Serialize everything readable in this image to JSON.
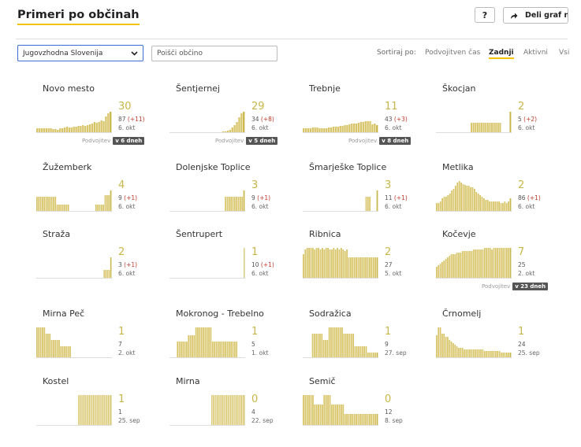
{
  "header": {
    "title": "Primeri po občinah",
    "help_label": "?",
    "share_label": "Deli graf na"
  },
  "filters": {
    "region_selected": "Jugovzhodna Slovenija",
    "search_placeholder": "Poišči občino",
    "sort_label": "Sortiraj po:",
    "sort_options": [
      {
        "label": "Podvojitven čas",
        "active": false
      },
      {
        "label": "Zadnji",
        "active": true
      },
      {
        "label": "Aktivni",
        "active": false
      },
      {
        "label": "Vsi",
        "active": false
      }
    ]
  },
  "colors": {
    "bar": "#d8c569",
    "bar_latest": "#c9b64a",
    "accent_underline": "#f2c200",
    "delta": "#c0392b",
    "select_border": "#3b6fd1"
  },
  "municipalities": [
    {
      "name": "Novo mesto",
      "latest": "30",
      "total": "87",
      "delta": "(+11)",
      "date": "6. okt",
      "doubling_label": "Podvojitev",
      "doubling_value": "v 6 dneh",
      "bars": [
        5,
        5,
        5,
        5,
        5,
        5,
        5,
        4,
        4,
        3,
        5,
        5,
        6,
        7,
        6,
        6,
        7,
        7,
        8,
        8,
        9,
        8,
        9,
        10,
        11,
        13,
        12,
        13,
        15,
        14,
        20,
        24,
        26
      ]
    },
    {
      "name": "Šentjernej",
      "latest": "29",
      "total": "34",
      "delta": "(+8)",
      "date": "6. okt",
      "doubling_label": "Podvojitev",
      "doubling_value": "v 5 dneh",
      "bars": [
        0,
        0,
        0,
        0,
        0,
        0,
        0,
        0,
        0,
        0,
        0,
        0,
        0,
        0,
        0,
        0,
        0,
        0,
        0,
        0,
        0,
        0,
        0,
        1,
        1,
        2,
        3,
        6,
        9,
        13,
        19,
        24,
        26
      ]
    },
    {
      "name": "Trebnje",
      "latest": "11",
      "total": "43",
      "delta": "(+3)",
      "date": "6. okt",
      "doubling_label": "Podvojitev",
      "doubling_value": "v 8 dneh",
      "bars": [
        5,
        5,
        5,
        5,
        6,
        6,
        6,
        5,
        5,
        5,
        5,
        6,
        6,
        7,
        7,
        7,
        8,
        8,
        9,
        9,
        10,
        11,
        11,
        11,
        12,
        13,
        13,
        14,
        14,
        14,
        10,
        11,
        9
      ]
    },
    {
      "name": "Škocjan",
      "latest": "2",
      "total": "5",
      "delta": "(+2)",
      "date": "6. okt",
      "bars": [
        0,
        0,
        0,
        0,
        0,
        0,
        0,
        0,
        0,
        0,
        0,
        0,
        0,
        0,
        0,
        0,
        0,
        12,
        12,
        12,
        12,
        12,
        12,
        12,
        12,
        12,
        12,
        12,
        12,
        12,
        12,
        12,
        0,
        0,
        0,
        0,
        26
      ]
    },
    {
      "name": "Žužemberk",
      "latest": "4",
      "total": "9",
      "delta": "(+1)",
      "date": "6. okt",
      "bars": [
        18,
        18,
        18,
        18,
        18,
        18,
        18,
        18,
        18,
        18,
        18,
        8,
        8,
        8,
        8,
        8,
        8,
        8,
        0,
        0,
        0,
        0,
        0,
        0,
        0,
        0,
        0,
        0,
        0,
        0,
        0,
        0,
        8,
        8,
        8,
        8,
        8,
        20,
        20,
        20,
        26
      ]
    },
    {
      "name": "Dolenjske Toplice",
      "latest": "3",
      "total": "9",
      "delta": "(+1)",
      "date": "6. okt",
      "bars": [
        0,
        0,
        0,
        0,
        0,
        0,
        0,
        0,
        0,
        0,
        0,
        0,
        0,
        0,
        0,
        0,
        0,
        0,
        0,
        0,
        0,
        0,
        0,
        0,
        0,
        0,
        0,
        0,
        0,
        0,
        18,
        18,
        18,
        18,
        18,
        18,
        18,
        18,
        18,
        18,
        26
      ]
    },
    {
      "name": "Šmarješke Toplice",
      "latest": "3",
      "total": "11",
      "delta": "(+1)",
      "date": "6. okt",
      "bars": [
        0,
        0,
        0,
        0,
        0,
        0,
        0,
        0,
        0,
        0,
        0,
        0,
        0,
        0,
        0,
        0,
        0,
        0,
        0,
        0,
        0,
        0,
        0,
        0,
        0,
        0,
        0,
        0,
        0,
        0,
        0,
        0,
        0,
        0,
        18,
        18,
        18,
        0,
        0,
        0,
        26
      ]
    },
    {
      "name": "Metlika",
      "latest": "2",
      "total": "86",
      "delta": "(+1)",
      "date": "6. okt",
      "bars": [
        10,
        10,
        12,
        16,
        18,
        18,
        20,
        22,
        26,
        28,
        32,
        36,
        38,
        36,
        34,
        33,
        32,
        32,
        30,
        30,
        28,
        24,
        22,
        20,
        18,
        16,
        14,
        14,
        12,
        12,
        12,
        12,
        12,
        12,
        10,
        10,
        12,
        10,
        12,
        16
      ]
    },
    {
      "name": "Straža",
      "latest": "2",
      "total": "3",
      "delta": "(+1)",
      "date": "6. okt",
      "bars": [
        0,
        0,
        0,
        0,
        0,
        0,
        0,
        0,
        0,
        0,
        0,
        0,
        0,
        0,
        0,
        0,
        0,
        0,
        0,
        0,
        0,
        0,
        0,
        0,
        0,
        0,
        0,
        0,
        0,
        0,
        0,
        0,
        0,
        0,
        0,
        0,
        0,
        0,
        0,
        0,
        10,
        10,
        10,
        10,
        26
      ]
    },
    {
      "name": "Šentrupert",
      "latest": "1",
      "total": "10",
      "delta": "(+1)",
      "date": "6. okt",
      "bars": [
        0,
        0,
        0,
        0,
        0,
        0,
        0,
        0,
        0,
        0,
        0,
        0,
        0,
        0,
        0,
        0,
        0,
        0,
        0,
        0,
        0,
        0,
        0,
        0,
        0,
        0,
        0,
        0,
        0,
        0,
        0,
        0,
        0,
        0,
        0,
        0,
        0,
        0,
        0,
        0,
        0,
        0,
        0,
        0,
        0,
        0,
        0,
        0,
        0,
        0,
        0,
        0,
        0,
        0,
        0,
        0,
        0,
        38
      ]
    },
    {
      "name": "Ribnica",
      "latest": "2",
      "total": "27",
      "delta": "",
      "date": "5. okt",
      "bars": [
        30,
        36,
        38,
        38,
        38,
        38,
        36,
        38,
        38,
        36,
        38,
        36,
        38,
        38,
        36,
        36,
        38,
        36,
        38,
        36,
        38,
        36,
        34,
        36,
        26,
        26,
        26,
        26,
        26,
        26,
        26,
        26,
        26,
        26,
        26,
        26,
        26,
        26,
        26,
        26
      ]
    },
    {
      "name": "Kočevje",
      "latest": "7",
      "total": "25",
      "delta": "",
      "date": "2. okt",
      "doubling_label": "Podvojitev",
      "doubling_value": "v 23 dneh",
      "bars": [
        14,
        16,
        18,
        20,
        22,
        24,
        26,
        28,
        30,
        30,
        30,
        32,
        32,
        32,
        34,
        34,
        34,
        34,
        34,
        34,
        36,
        36,
        36,
        36,
        36,
        36,
        38,
        38,
        38,
        38,
        36,
        38,
        38,
        38,
        38,
        38,
        38,
        38,
        38,
        38,
        38
      ]
    },
    {
      "name": "Mirna Peč",
      "latest": "1",
      "total": "7",
      "delta": "",
      "date": "2. okt",
      "bars": [
        38,
        38,
        38,
        38,
        38,
        30,
        30,
        30,
        22,
        22,
        22,
        22,
        22,
        14,
        14,
        14,
        14,
        14,
        14,
        0,
        0,
        0,
        0,
        0,
        0,
        0,
        0,
        0,
        0,
        0,
        0,
        0,
        0,
        0,
        0,
        0,
        0,
        0,
        0,
        0,
        0
      ]
    },
    {
      "name": "Mokronog - Trebelno",
      "latest": "1",
      "total": "5",
      "delta": "",
      "date": "1. okt",
      "bars": [
        0,
        0,
        0,
        0,
        20,
        20,
        20,
        20,
        20,
        20,
        28,
        28,
        28,
        28,
        38,
        38,
        38,
        38,
        38,
        38,
        38,
        38,
        38,
        20,
        20,
        20,
        20,
        20,
        20,
        20,
        20,
        20,
        20,
        20,
        20,
        20,
        20,
        0,
        0,
        0,
        0
      ]
    },
    {
      "name": "Sodražica",
      "latest": "1",
      "total": "9",
      "delta": "",
      "date": "27. sep",
      "bars": [
        0,
        0,
        0,
        0,
        0,
        30,
        30,
        30,
        30,
        30,
        30,
        22,
        22,
        22,
        38,
        38,
        38,
        38,
        38,
        38,
        38,
        38,
        30,
        30,
        30,
        30,
        30,
        30,
        14,
        14,
        14,
        14,
        14,
        14,
        14,
        6,
        6,
        6,
        6,
        6,
        6
      ]
    },
    {
      "name": "Črnomelj",
      "latest": "1",
      "total": "24",
      "delta": "",
      "date": "25. sep",
      "bars": [
        28,
        38,
        38,
        30,
        30,
        26,
        26,
        22,
        20,
        18,
        16,
        14,
        12,
        12,
        12,
        10,
        10,
        10,
        10,
        10,
        10,
        10,
        10,
        10,
        10,
        10,
        8,
        8,
        8,
        8,
        8,
        8,
        8,
        8,
        8,
        6,
        6,
        6,
        6,
        6,
        6
      ]
    },
    {
      "name": "Kostel",
      "latest": "1",
      "total": "1",
      "delta": "",
      "date": "25. sep",
      "bars": [
        0,
        0,
        0,
        0,
        0,
        0,
        0,
        0,
        0,
        0,
        0,
        0,
        0,
        0,
        0,
        0,
        0,
        0,
        0,
        0,
        0,
        0,
        0,
        0,
        0,
        0,
        0,
        0,
        0,
        0,
        0,
        38,
        38,
        38,
        38,
        38,
        38,
        38,
        38,
        38,
        38,
        38,
        38,
        38,
        38,
        38,
        38,
        38,
        38,
        38,
        38,
        38,
        38,
        38,
        38,
        38
      ]
    },
    {
      "name": "Mirna",
      "latest": "0",
      "total": "4",
      "delta": "",
      "date": "22. sep",
      "bars": [
        0,
        0,
        0,
        0,
        0,
        0,
        0,
        0,
        0,
        0,
        0,
        0,
        0,
        0,
        0,
        0,
        0,
        0,
        0,
        0,
        0,
        0,
        0,
        0,
        0,
        0,
        0,
        0,
        0,
        0,
        0,
        38,
        38,
        38,
        38,
        38,
        38,
        38,
        38,
        38,
        38,
        38,
        38,
        38,
        38,
        38,
        38,
        38,
        38,
        38,
        38,
        38,
        38,
        38,
        38,
        38
      ]
    },
    {
      "name": "Semič",
      "latest": "0",
      "total": "12",
      "delta": "",
      "date": "8. sep",
      "bars": [
        38,
        38,
        38,
        38,
        38,
        38,
        26,
        26,
        26,
        26,
        26,
        38,
        38,
        38,
        38,
        26,
        26,
        26,
        26,
        26,
        26,
        26,
        14,
        14,
        14,
        14,
        14,
        14,
        14,
        14,
        14,
        14,
        14,
        14,
        14,
        14,
        14,
        14,
        14,
        14
      ]
    }
  ]
}
